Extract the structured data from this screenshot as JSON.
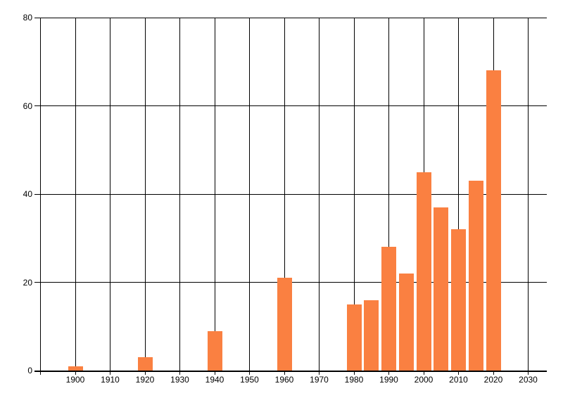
{
  "chart_data": {
    "type": "bar",
    "title": "",
    "xlabel": "",
    "ylabel": "",
    "x": [
      1900,
      1920,
      1940,
      1960,
      1980,
      1985,
      1990,
      1995,
      2000,
      2005,
      2010,
      2015,
      2020
    ],
    "values": [
      1,
      3,
      9,
      21,
      15,
      16,
      28,
      22,
      45,
      37,
      32,
      43,
      68
    ],
    "x_tick_labels": [
      "1900",
      "1910",
      "1920",
      "1930",
      "1940",
      "1950",
      "1960",
      "1970",
      "1980",
      "1990",
      "2000",
      "2010",
      "2020",
      "2030"
    ],
    "x_tick_years": [
      1900,
      1910,
      1920,
      1930,
      1940,
      1950,
      1960,
      1970,
      1980,
      1990,
      2000,
      2010,
      2020,
      2030
    ],
    "x_gridline_years": [
      1890,
      1900,
      1910,
      1920,
      1930,
      1940,
      1950,
      1960,
      1970,
      1980,
      1990,
      2000,
      2010,
      2015,
      2020,
      2030
    ],
    "y_tick_labels": [
      "0",
      "20",
      "40",
      "60",
      "80"
    ],
    "y_ticks": [
      0,
      20,
      40,
      60,
      80
    ],
    "xlim_years": [
      1888,
      2036
    ],
    "ylim": [
      0,
      80
    ],
    "grid": "both",
    "legend": "none",
    "colors": {
      "bar": "#fa8041",
      "grid": "#000000",
      "axis": "#000000",
      "text": "#000000",
      "background": "#ffffff"
    }
  }
}
